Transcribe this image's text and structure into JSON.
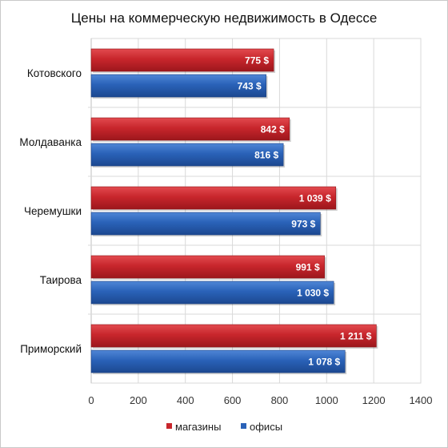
{
  "chart_data": {
    "type": "bar",
    "orientation": "horizontal",
    "title": "Цены на коммерческую недвижимость в Одессе",
    "categories": [
      "Котовского",
      "Молдаванка",
      "Черемушки",
      "Таирова",
      "Приморский"
    ],
    "series": [
      {
        "name": "магазины",
        "color": "#c8262c",
        "values": [
          775,
          842,
          1039,
          991,
          1211
        ],
        "labels": [
          "775 $",
          "842 $",
          "1 039 $",
          "991 $",
          "1 211 $"
        ]
      },
      {
        "name": "офисы",
        "color": "#2a62b8",
        "values": [
          743,
          816,
          973,
          1030,
          1078
        ],
        "labels": [
          "743 $",
          "816 $",
          "973 $",
          "1 030 $",
          "1 078 $"
        ]
      }
    ],
    "xlim": [
      0,
      1400
    ],
    "xticks": [
      0,
      200,
      400,
      600,
      800,
      1000,
      1200,
      1400
    ],
    "xlabel": "",
    "ylabel": "",
    "grid": true,
    "legend_position": "bottom"
  }
}
